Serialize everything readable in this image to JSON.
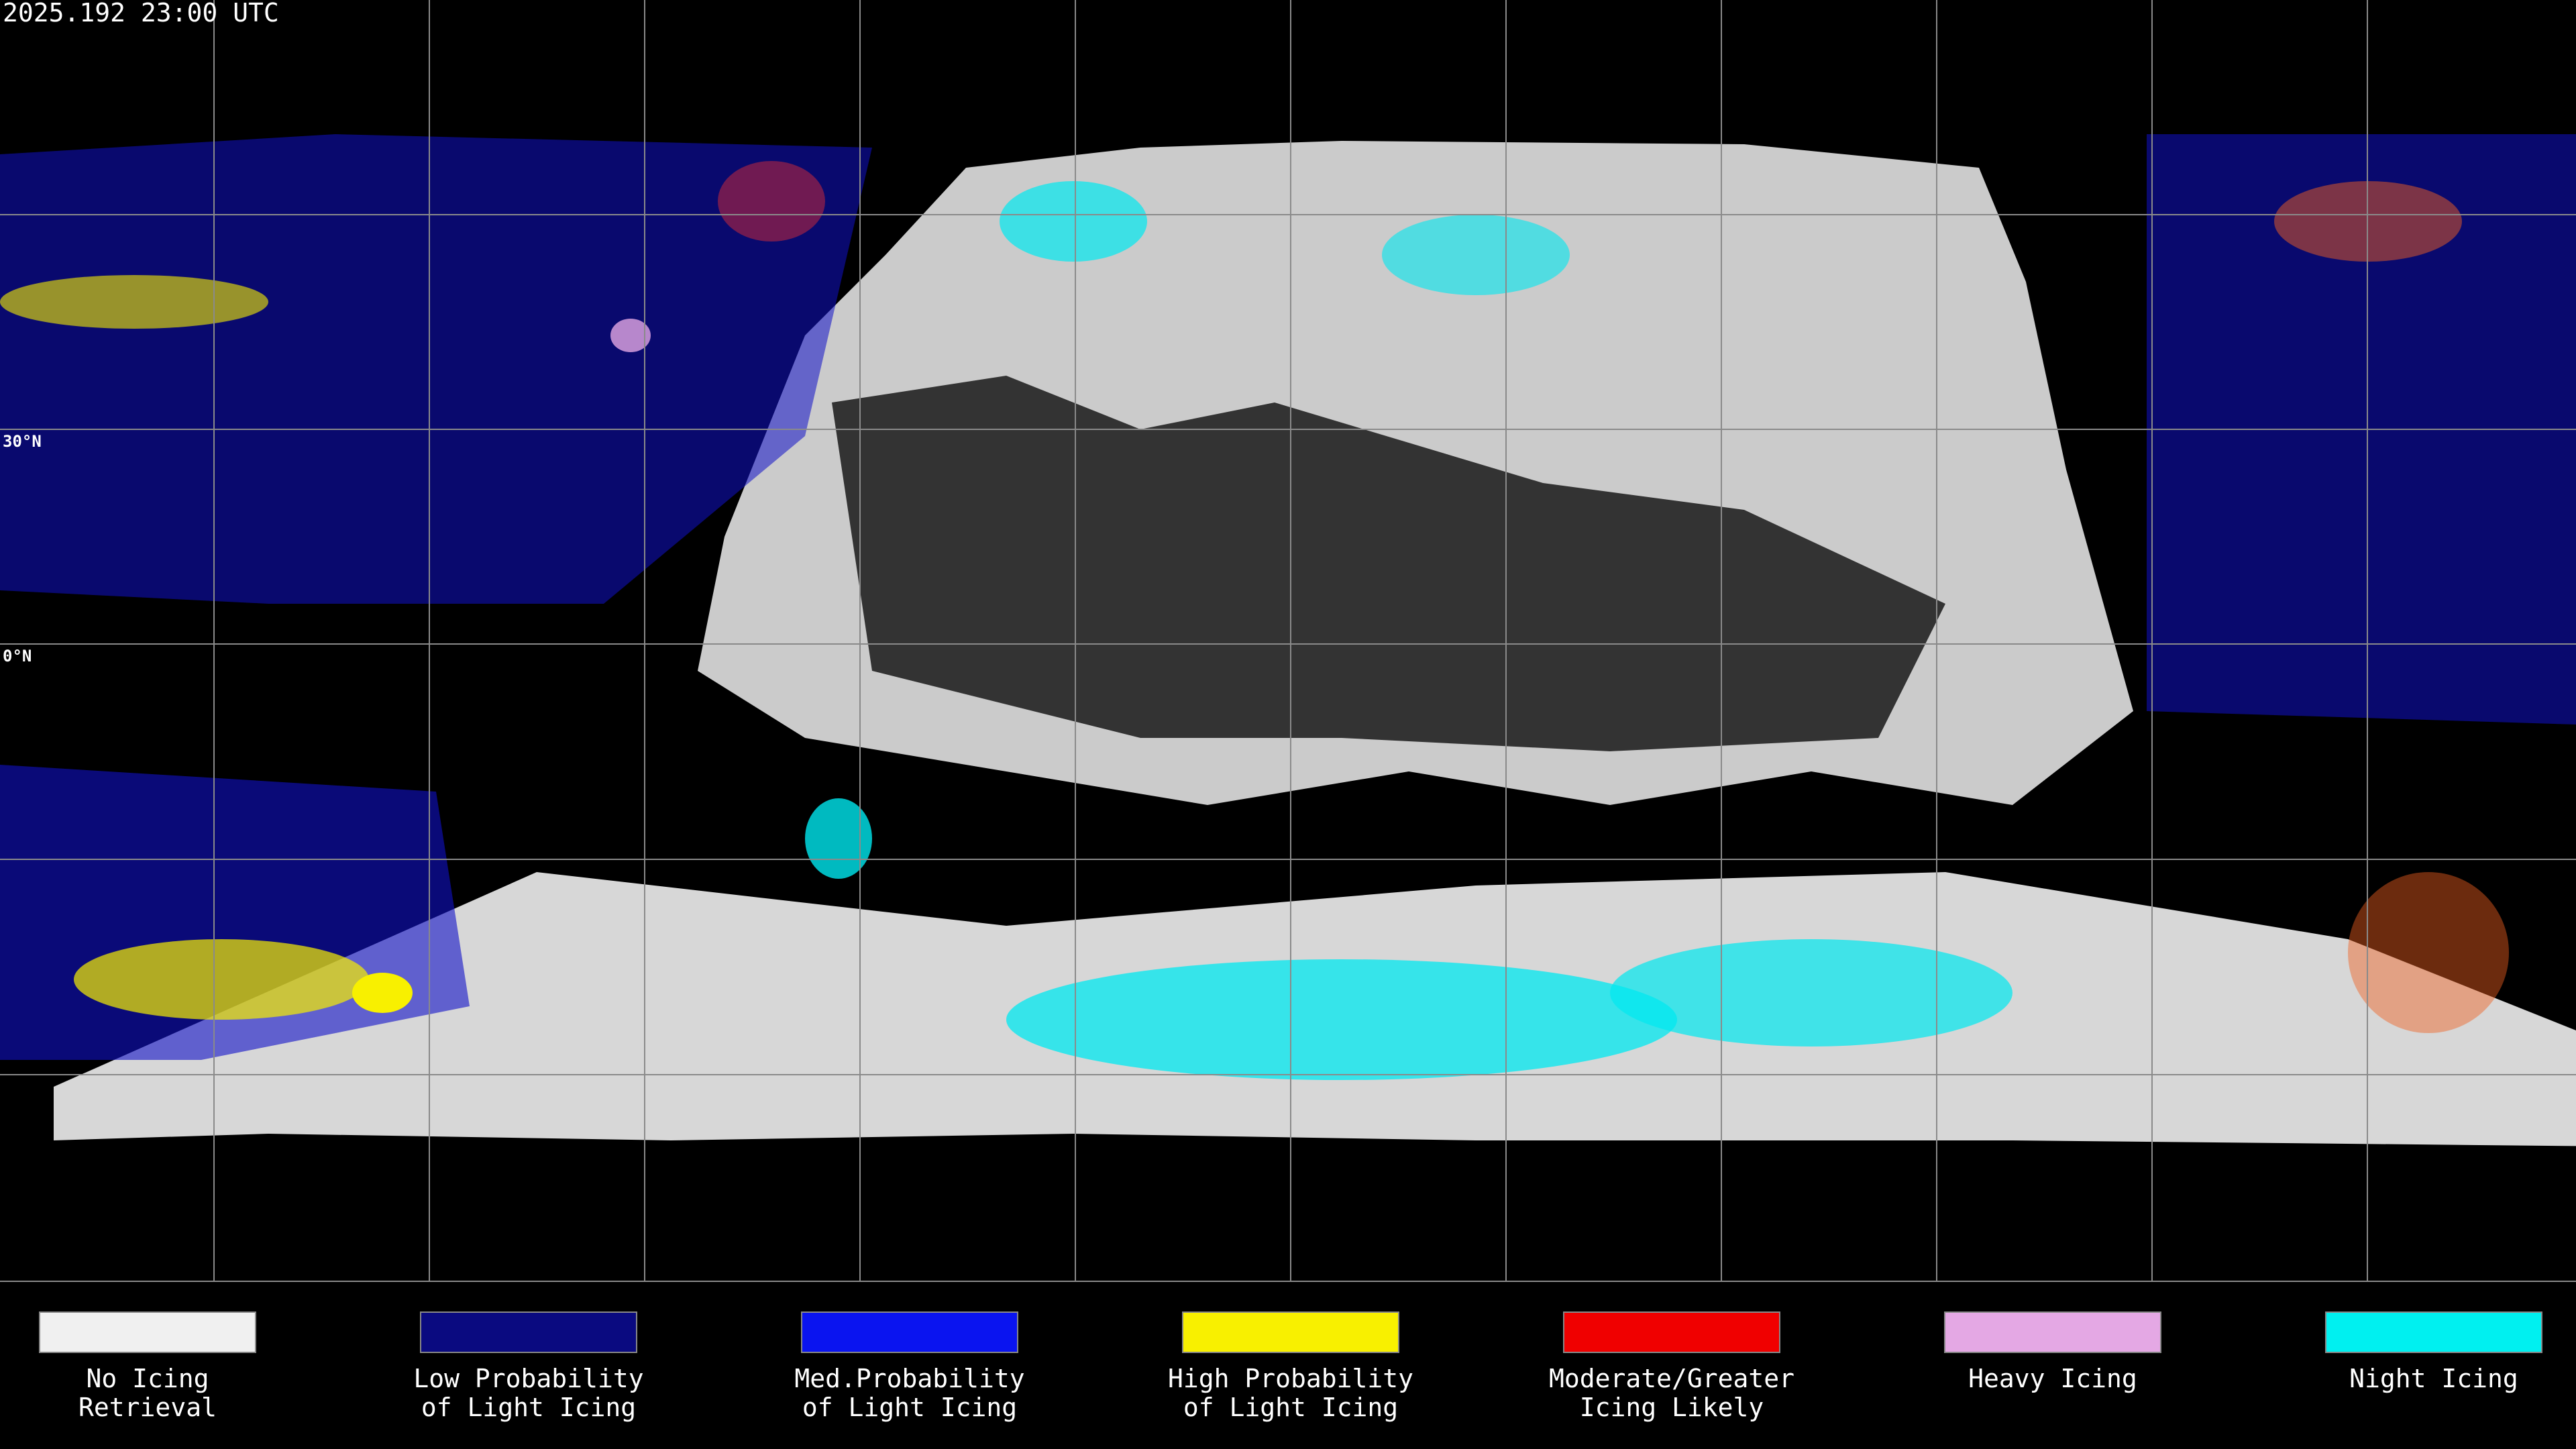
{
  "header": {
    "timestamp": "2025.192 23:00 UTC"
  },
  "map": {
    "latitude_labels": [
      "30°N",
      "0°N"
    ]
  },
  "legend": {
    "items": [
      {
        "lines": [
          "No Icing",
          "Retrieval"
        ],
        "color": "#f0f0f0"
      },
      {
        "lines": [
          "Low Probability",
          "of Light Icing"
        ],
        "color": "#0a0a80"
      },
      {
        "lines": [
          "Med.Probability",
          "of Light Icing"
        ],
        "color": "#0a14f0"
      },
      {
        "lines": [
          "High Probability",
          "of Light Icing"
        ],
        "color": "#f8f000"
      },
      {
        "lines": [
          "Moderate/Greater",
          "Icing Likely"
        ],
        "color": "#f00000"
      },
      {
        "lines": [
          "Heavy Icing"
        ],
        "color": "#e4a8e4"
      },
      {
        "lines": [
          "Night Icing"
        ],
        "color": "#00f0f0"
      }
    ]
  }
}
